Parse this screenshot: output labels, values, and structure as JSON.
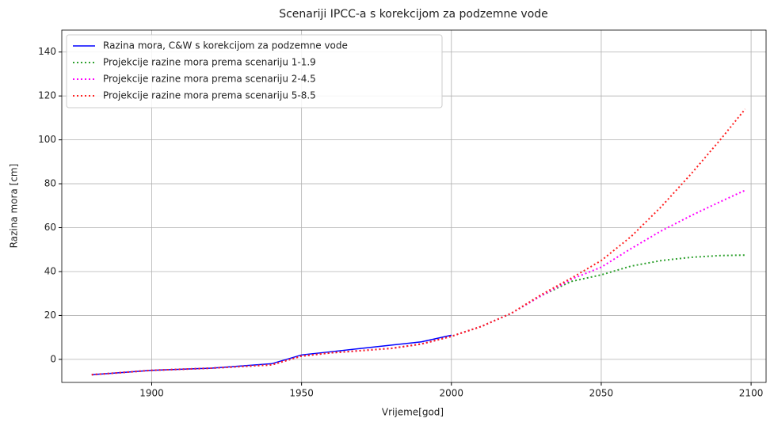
{
  "chart_data": {
    "type": "line",
    "title": "Scenariji IPCC-a s korekcijom za podzemne vode",
    "xlabel": "Vrijeme[god]",
    "ylabel": "Razina mora [cm]",
    "x": [
      1880,
      1900,
      1920,
      1940,
      1950,
      1960,
      1970,
      1980,
      1990,
      2000,
      2010,
      2020,
      2030,
      2040,
      2050,
      2060,
      2070,
      2080,
      2090,
      2098
    ],
    "series": [
      {
        "name": "Razina mora, C&W s korekcijom za podzemne vode",
        "color": "#0000ff",
        "style": "solid",
        "values": [
          -7,
          -5,
          -4,
          -2,
          2,
          3.5,
          5,
          6.5,
          8,
          11,
          null,
          null,
          null,
          null,
          null,
          null,
          null,
          null,
          null,
          null
        ]
      },
      {
        "name": "Projekcije razine mora prema scenariju 1-1.9",
        "color": "#2ca02c",
        "style": "dotted",
        "values": [
          -7,
          -5,
          -4,
          -2.5,
          1.5,
          3,
          4,
          5,
          7,
          10.5,
          15,
          21,
          29,
          35.5,
          38.5,
          42.5,
          45,
          46.5,
          47.3,
          47.5
        ]
      },
      {
        "name": "Projekcije razine mora prema scenariju 2-4.5",
        "color": "#ff00ff",
        "style": "dotted",
        "values": [
          -7,
          -5,
          -4,
          -2.5,
          1.5,
          3,
          4,
          5,
          7,
          10.5,
          15,
          21,
          29,
          36.5,
          42,
          50.5,
          58.5,
          65.5,
          72,
          77
        ]
      },
      {
        "name": "Projekcije razine mora prema scenariju 5-8.5",
        "color": "#ff2020",
        "style": "dotted",
        "values": [
          -7,
          -5,
          -4,
          -2.5,
          1.5,
          3,
          4,
          5,
          7,
          10.5,
          15,
          21,
          29.5,
          37,
          45,
          56,
          69.5,
          84.5,
          100.5,
          114
        ]
      }
    ],
    "xlim": [
      1870,
      2105
    ],
    "ylim": [
      -10.5,
      150
    ],
    "xticks": [
      1900,
      1950,
      2000,
      2050,
      2100
    ],
    "yticks": [
      0,
      20,
      40,
      60,
      80,
      100,
      120,
      140
    ],
    "grid": true,
    "legend": "upper left"
  }
}
